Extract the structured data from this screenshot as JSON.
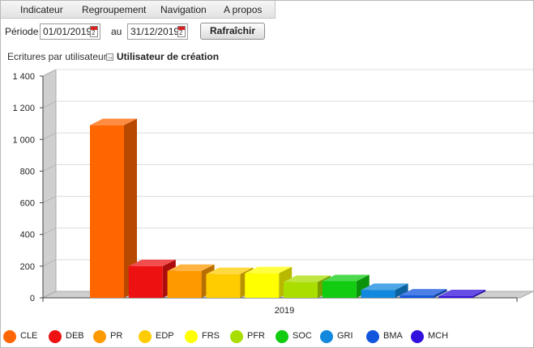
{
  "menu": {
    "items": [
      {
        "label": "Indicateur"
      },
      {
        "label": "Regroupement"
      },
      {
        "label": "Navigation"
      },
      {
        "label": "A propos"
      }
    ]
  },
  "period": {
    "label": "Période",
    "start": "01/01/2019",
    "to_label": "au",
    "end": "31/12/2019",
    "refresh_label": "Rafraîchir"
  },
  "grouping": {
    "label": "Ecritures par utilisateur",
    "value": "Utilisateur de création"
  },
  "chart_data": {
    "type": "bar",
    "categories": [
      "2019"
    ],
    "ylim": [
      0,
      1400
    ],
    "yticks": [
      0,
      200,
      400,
      600,
      800,
      1000,
      1200,
      1400
    ],
    "ytick_labels": [
      "0",
      "200",
      "400",
      "600",
      "800",
      "1 000",
      "1 200",
      "1 400"
    ],
    "grid": true,
    "three_d": true,
    "legend_position": "bottom",
    "series": [
      {
        "name": "CLE",
        "values": [
          1090
        ],
        "color": "#ff6600"
      },
      {
        "name": "DEB",
        "values": [
          200
        ],
        "color": "#ee1111"
      },
      {
        "name": "PR",
        "values": [
          170
        ],
        "color": "#ff9900"
      },
      {
        "name": "EDP",
        "values": [
          150
        ],
        "color": "#ffcc00"
      },
      {
        "name": "FRS",
        "values": [
          155
        ],
        "color": "#ffff00"
      },
      {
        "name": "PFR",
        "values": [
          100
        ],
        "color": "#aadd00"
      },
      {
        "name": "SOC",
        "values": [
          105
        ],
        "color": "#11cc11"
      },
      {
        "name": "GRI",
        "values": [
          50
        ],
        "color": "#1188dd"
      },
      {
        "name": "BMA",
        "values": [
          15
        ],
        "color": "#1155dd"
      },
      {
        "name": "MCH",
        "values": [
          10
        ],
        "color": "#3311dd"
      }
    ]
  }
}
